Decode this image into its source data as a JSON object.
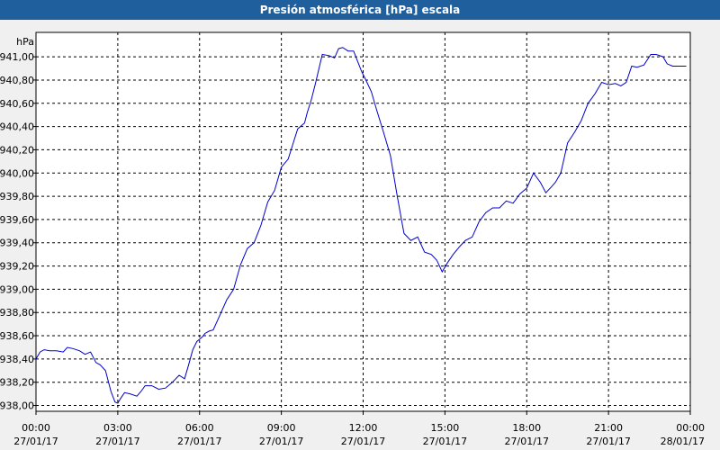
{
  "window": {
    "title": "Presión atmosférica [hPa] escala"
  },
  "colors": {
    "title_bar": "#1f5f9e",
    "series": "#0000cc",
    "plot_bg": "#ffffff",
    "page_bg": "#f0f0f0"
  },
  "chart_data": {
    "type": "line",
    "title": "Presión atmosférica [hPa] escala",
    "ylabel": "hPa",
    "ylim": [
      937.95,
      941.21
    ],
    "xlim": [
      0,
      24
    ],
    "grid": true,
    "y_ticks": [
      {
        "value": 938.0,
        "label": "938,00"
      },
      {
        "value": 938.2,
        "label": "938,20"
      },
      {
        "value": 938.4,
        "label": "938,40"
      },
      {
        "value": 938.6,
        "label": "938,60"
      },
      {
        "value": 938.8,
        "label": "938,80"
      },
      {
        "value": 939.0,
        "label": "939,00"
      },
      {
        "value": 939.2,
        "label": "939,20"
      },
      {
        "value": 939.4,
        "label": "939,40"
      },
      {
        "value": 939.6,
        "label": "939,60"
      },
      {
        "value": 939.8,
        "label": "939,80"
      },
      {
        "value": 940.0,
        "label": "940,00"
      },
      {
        "value": 940.2,
        "label": "940,20"
      },
      {
        "value": 940.4,
        "label": "940,40"
      },
      {
        "value": 940.6,
        "label": "940,60"
      },
      {
        "value": 940.8,
        "label": "940,80"
      },
      {
        "value": 941.0,
        "label": "941,00"
      }
    ],
    "x_ticks": [
      {
        "value": 0,
        "time": "00:00",
        "date": "27/01/17"
      },
      {
        "value": 3,
        "time": "03:00",
        "date": "27/01/17"
      },
      {
        "value": 6,
        "time": "06:00",
        "date": "27/01/17"
      },
      {
        "value": 9,
        "time": "09:00",
        "date": "27/01/17"
      },
      {
        "value": 12,
        "time": "12:00",
        "date": "27/01/17"
      },
      {
        "value": 15,
        "time": "15:00",
        "date": "27/01/17"
      },
      {
        "value": 18,
        "time": "18:00",
        "date": "27/01/17"
      },
      {
        "value": 21,
        "time": "21:00",
        "date": "27/01/17"
      },
      {
        "value": 24,
        "time": "00:00",
        "date": "28/01/17"
      }
    ],
    "series": [
      {
        "x": [
          0,
          0.15,
          0.3,
          0.5,
          0.75,
          1.0,
          1.15,
          1.35,
          1.6,
          1.8,
          2.0,
          2.2,
          2.35,
          2.55,
          2.75,
          2.9,
          3.0,
          3.1,
          3.25,
          3.45,
          3.7,
          3.85,
          4.0,
          4.25,
          4.5,
          4.75,
          5.0,
          5.25,
          5.45,
          5.6,
          5.75,
          5.9,
          6.0,
          6.1,
          6.2,
          6.35,
          6.5,
          6.75,
          7.0,
          7.25,
          7.5,
          7.75,
          8.0,
          8.25,
          8.5,
          8.75,
          9.0,
          9.25,
          9.45,
          9.6,
          9.75,
          9.85,
          9.95,
          10.1,
          10.25,
          10.5,
          10.75,
          10.95,
          11.1,
          11.25,
          11.45,
          11.65,
          11.8,
          11.95,
          12.1,
          12.3,
          12.5,
          12.75,
          13.0,
          13.25,
          13.5,
          13.75,
          14.0,
          14.25,
          14.5,
          14.7,
          14.9,
          15.1,
          15.3,
          15.55,
          15.75,
          16.0,
          16.25,
          16.5,
          16.75,
          17.0,
          17.25,
          17.5,
          17.75,
          18.0,
          18.25,
          18.5,
          18.7,
          18.9,
          19.05,
          19.25,
          19.5,
          19.75,
          20.0,
          20.25,
          20.5,
          20.75,
          21.0,
          21.25,
          21.45,
          21.65,
          21.85,
          22.05,
          22.3,
          22.55,
          22.75,
          23.0,
          23.15,
          23.35,
          23.55,
          23.75,
          23.85
        ],
        "y": [
          938.4,
          938.46,
          938.48,
          938.47,
          938.47,
          938.46,
          938.5,
          938.49,
          938.47,
          938.44,
          938.46,
          938.37,
          938.35,
          938.3,
          938.12,
          938.03,
          938.02,
          938.06,
          938.11,
          938.1,
          938.08,
          938.12,
          938.17,
          938.17,
          938.14,
          938.15,
          938.2,
          938.26,
          938.23,
          938.35,
          938.48,
          938.55,
          938.57,
          938.59,
          938.62,
          938.64,
          938.65,
          938.78,
          938.91,
          939.0,
          939.21,
          939.35,
          939.4,
          939.55,
          939.75,
          939.85,
          940.05,
          940.12,
          940.27,
          940.38,
          940.41,
          940.43,
          940.52,
          940.63,
          940.77,
          941.02,
          941.01,
          940.99,
          941.07,
          941.08,
          941.05,
          941.05,
          940.96,
          940.87,
          940.8,
          940.7,
          940.54,
          940.35,
          940.15,
          939.8,
          939.48,
          939.42,
          939.45,
          939.32,
          939.3,
          939.25,
          939.15,
          939.23,
          939.3,
          939.37,
          939.42,
          939.45,
          939.58,
          939.66,
          939.7,
          939.7,
          939.76,
          939.74,
          939.82,
          939.87,
          940.0,
          939.92,
          939.83,
          939.88,
          939.92,
          940.0,
          940.26,
          940.35,
          940.45,
          940.6,
          940.68,
          940.78,
          940.76,
          940.77,
          940.75,
          940.78,
          940.92,
          940.91,
          940.93,
          941.02,
          941.02,
          941.0,
          940.94,
          940.92,
          940.92,
          940.92,
          940.92
        ]
      }
    ]
  }
}
